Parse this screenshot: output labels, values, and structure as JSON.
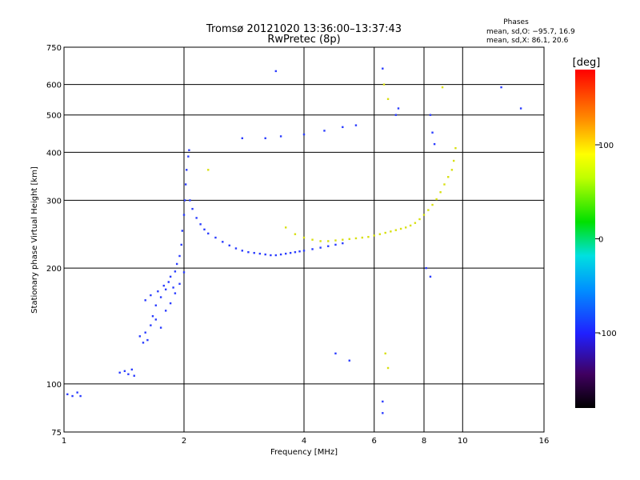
{
  "chart_data": {
    "type": "scatter",
    "title": "Tromsø 20121020 13:36:00–13:37:43",
    "subtitle": "RwPretec (8p)",
    "xlabel": "Frequency [MHz]",
    "ylabel": "Stationary phase Virtual Height [km]",
    "x_scale": "log",
    "y_scale": "log",
    "xlim": [
      1,
      16
    ],
    "ylim": [
      75,
      750
    ],
    "x_ticks": [
      1,
      2,
      4,
      6,
      8,
      10,
      16
    ],
    "y_ticks": [
      75,
      100,
      200,
      300,
      400,
      500,
      600,
      750
    ],
    "grid": true,
    "phase_stats": {
      "title": "Phases",
      "line_o": "mean, sd,O: −95.7, 16.9",
      "line_x": "mean, sd,X:  86.1, 20.6"
    },
    "colorbar": {
      "label": "[deg]",
      "range": [
        -180,
        180
      ],
      "ticks": [
        100,
        0,
        -100
      ]
    },
    "series": [
      {
        "note": "O-mode trace (blue/purple)",
        "points": [
          [
            1.02,
            94
          ],
          [
            1.05,
            93
          ],
          [
            1.08,
            95
          ],
          [
            1.1,
            93
          ],
          [
            1.38,
            107
          ],
          [
            1.42,
            108
          ],
          [
            1.45,
            106
          ],
          [
            1.48,
            109
          ],
          [
            1.5,
            105
          ],
          [
            1.55,
            133
          ],
          [
            1.58,
            128
          ],
          [
            1.6,
            136
          ],
          [
            1.62,
            130
          ],
          [
            1.65,
            142
          ],
          [
            1.67,
            150
          ],
          [
            1.7,
            147
          ],
          [
            1.6,
            165
          ],
          [
            1.65,
            170
          ],
          [
            1.7,
            160
          ],
          [
            1.72,
            174
          ],
          [
            1.75,
            168
          ],
          [
            1.78,
            180
          ],
          [
            1.8,
            176
          ],
          [
            1.83,
            184
          ],
          [
            1.85,
            190
          ],
          [
            1.88,
            178
          ],
          [
            1.9,
            196
          ],
          [
            1.92,
            205
          ],
          [
            1.95,
            215
          ],
          [
            1.97,
            230
          ],
          [
            1.98,
            250
          ],
          [
            2.0,
            275
          ],
          [
            2.01,
            300
          ],
          [
            2.02,
            330
          ],
          [
            2.03,
            360
          ],
          [
            2.05,
            390
          ],
          [
            2.06,
            405
          ],
          [
            1.75,
            140
          ],
          [
            1.8,
            155
          ],
          [
            1.85,
            162
          ],
          [
            1.9,
            172
          ],
          [
            1.95,
            182
          ],
          [
            2.0,
            195
          ],
          [
            2.07,
            300
          ],
          [
            2.1,
            285
          ],
          [
            2.15,
            270
          ],
          [
            2.2,
            260
          ],
          [
            2.25,
            252
          ],
          [
            2.3,
            246
          ],
          [
            2.4,
            240
          ],
          [
            2.5,
            234
          ],
          [
            2.6,
            229
          ],
          [
            2.7,
            225
          ],
          [
            2.8,
            222
          ],
          [
            2.9,
            220
          ],
          [
            3.0,
            219
          ],
          [
            3.1,
            218
          ],
          [
            3.2,
            217
          ],
          [
            3.3,
            216
          ],
          [
            3.4,
            216
          ],
          [
            3.5,
            217
          ],
          [
            3.6,
            218
          ],
          [
            3.7,
            219
          ],
          [
            3.8,
            220
          ],
          [
            3.9,
            221
          ],
          [
            4.0,
            222
          ],
          [
            4.2,
            224
          ],
          [
            4.4,
            226
          ],
          [
            4.6,
            228
          ],
          [
            4.8,
            230
          ],
          [
            5.0,
            232
          ],
          [
            2.8,
            435
          ],
          [
            3.2,
            435
          ],
          [
            3.5,
            440
          ],
          [
            4.0,
            445
          ],
          [
            4.5,
            455
          ],
          [
            5.0,
            465
          ],
          [
            5.4,
            470
          ],
          [
            3.4,
            650
          ],
          [
            6.3,
            660
          ],
          [
            6.3,
            90
          ],
          [
            6.3,
            84
          ],
          [
            12.5,
            590
          ],
          [
            14.0,
            520
          ],
          [
            4.8,
            120
          ],
          [
            5.2,
            115
          ],
          [
            6.8,
            500
          ],
          [
            6.9,
            520
          ],
          [
            8.3,
            500
          ],
          [
            8.4,
            450
          ],
          [
            8.5,
            420
          ],
          [
            8.3,
            190
          ],
          [
            8.1,
            200
          ]
        ]
      },
      {
        "note": "X-mode trace (yellow/green)",
        "points": [
          [
            3.6,
            255
          ],
          [
            3.8,
            245
          ],
          [
            4.0,
            240
          ],
          [
            4.2,
            237
          ],
          [
            4.4,
            235
          ],
          [
            4.6,
            235
          ],
          [
            4.8,
            236
          ],
          [
            5.0,
            237
          ],
          [
            5.2,
            238
          ],
          [
            5.4,
            239
          ],
          [
            5.6,
            240
          ],
          [
            5.8,
            241
          ],
          [
            6.0,
            243
          ],
          [
            6.2,
            245
          ],
          [
            6.4,
            247
          ],
          [
            6.6,
            249
          ],
          [
            6.8,
            251
          ],
          [
            7.0,
            253
          ],
          [
            7.2,
            255
          ],
          [
            7.4,
            258
          ],
          [
            7.6,
            262
          ],
          [
            7.8,
            268
          ],
          [
            8.0,
            275
          ],
          [
            8.2,
            283
          ],
          [
            8.4,
            292
          ],
          [
            8.6,
            302
          ],
          [
            8.8,
            315
          ],
          [
            9.0,
            330
          ],
          [
            9.2,
            345
          ],
          [
            9.4,
            360
          ],
          [
            9.5,
            380
          ],
          [
            9.6,
            410
          ],
          [
            6.35,
            600
          ],
          [
            6.5,
            550
          ],
          [
            8.9,
            590
          ],
          [
            2.3,
            360
          ],
          [
            6.4,
            120
          ],
          [
            6.5,
            110
          ]
        ]
      }
    ]
  }
}
